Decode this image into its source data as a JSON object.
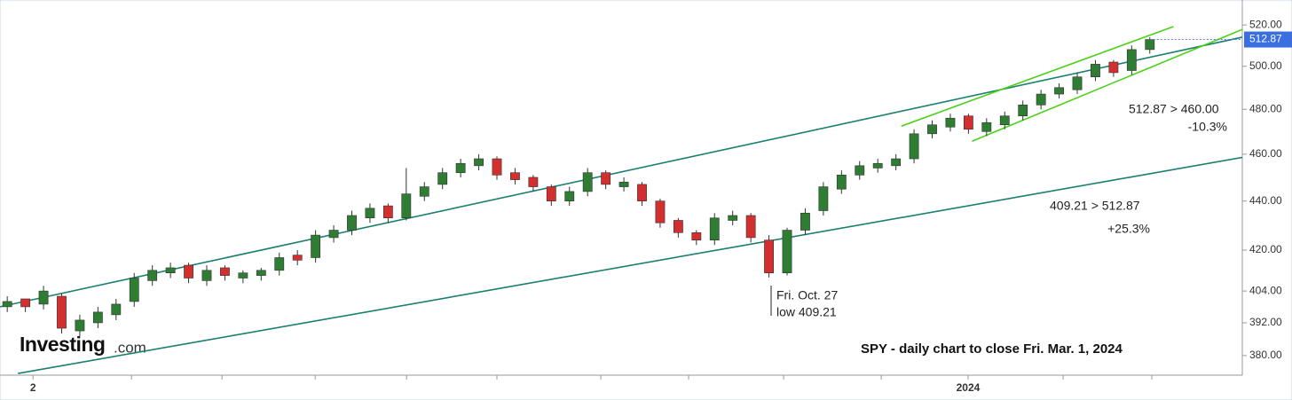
{
  "chart_data": {
    "type": "candlestick",
    "title": "SPY - daily chart to close Fri. Mar. 1, 2024",
    "logo": {
      "name": "Investing",
      "suffix": ".com"
    },
    "log_scale": true,
    "up_color": "#2e7d32",
    "down_color": "#d32f2f",
    "open": [
      398,
      401,
      399,
      402,
      389,
      392,
      395,
      400,
      408,
      411,
      414,
      408,
      413,
      409,
      410,
      412,
      418,
      417,
      425,
      428,
      433,
      438,
      433,
      442,
      447,
      452,
      455,
      458,
      452,
      450,
      446,
      440,
      444,
      452,
      446,
      447,
      440,
      432,
      427,
      424,
      432,
      434,
      424,
      411,
      428,
      436,
      445,
      451,
      454,
      455,
      458,
      469,
      472,
      477,
      470,
      473,
      477,
      482,
      487,
      489,
      495,
      502,
      498,
      508
    ],
    "high": [
      402,
      400,
      406,
      403,
      395,
      398,
      401,
      411,
      414,
      415,
      415,
      414,
      414,
      412,
      413,
      419,
      420,
      428,
      430,
      436,
      439,
      439,
      454,
      448,
      454,
      458,
      460,
      459,
      454,
      451,
      447,
      446,
      454,
      453,
      450,
      448,
      441,
      433,
      428,
      435,
      436,
      435,
      426,
      429,
      437,
      448,
      453,
      457,
      458,
      460,
      471,
      475,
      478,
      478,
      476,
      479,
      484,
      489,
      492,
      497,
      503,
      503,
      510,
      514
    ],
    "low": [
      396,
      396,
      397,
      388,
      387,
      390,
      393,
      398,
      406,
      409,
      407,
      406,
      408,
      407,
      408,
      410,
      414,
      415,
      423,
      426,
      431,
      431,
      432,
      440,
      445,
      450,
      453,
      449,
      447,
      444,
      438,
      438,
      442,
      445,
      444,
      438,
      429,
      425,
      422,
      422,
      430,
      423,
      409.21,
      410,
      426,
      434,
      443,
      449,
      452,
      453,
      456,
      467,
      470,
      469,
      468,
      471,
      475,
      480,
      485,
      487,
      493,
      495,
      496,
      506
    ],
    "close": [
      400,
      398,
      404,
      390,
      393,
      396,
      399,
      409,
      412,
      413,
      409,
      412,
      410,
      411,
      412,
      417,
      416,
      426,
      428,
      434,
      437,
      433,
      443,
      446,
      452,
      456,
      458,
      451,
      449,
      446,
      440,
      444,
      452,
      447,
      448,
      440,
      431,
      427,
      424,
      433,
      434,
      425,
      411,
      428,
      435,
      446,
      451,
      455,
      456,
      458,
      469,
      473,
      476,
      471,
      474,
      477,
      482,
      487,
      490,
      495,
      501,
      497,
      508,
      512.87
    ],
    "last_price": 512.87,
    "ylim": [
      373,
      528
    ],
    "yticks": [
      {
        "value": 380,
        "label": "380.00"
      },
      {
        "value": 392,
        "label": "392.00"
      },
      {
        "value": 404,
        "label": "404.00"
      },
      {
        "value": 420,
        "label": "420.00"
      },
      {
        "value": 440,
        "label": "440.00"
      },
      {
        "value": 460,
        "label": "460.00"
      },
      {
        "value": 480,
        "label": "480.00"
      },
      {
        "value": 500,
        "label": "500.00"
      },
      {
        "value": 520,
        "label": "520.00"
      }
    ],
    "xlim": [
      -0.4,
      68.1
    ],
    "xticks": [
      {
        "value": 1.42,
        "label": "2"
      },
      {
        "value": 52.98,
        "label": "2024"
      }
    ],
    "minor_xticks": [
      6.85,
      11.84,
      16.98,
      22.02,
      27.0,
      32.73,
      37.57,
      42.81,
      48.19,
      58.22,
      63.11
    ],
    "trendlines": [
      {
        "color": "#1a7f6e",
        "x": [
          -0.4,
          68.1
        ],
        "y": [
          398,
          514
        ]
      },
      {
        "color": "#1a7f6e",
        "x": [
          0.59,
          68.1
        ],
        "y": [
          373.6,
          458.6
        ]
      },
      {
        "color": "#4cd11a",
        "x": [
          49.3,
          64.3
        ],
        "y": [
          472.4,
          519.2
        ]
      },
      {
        "color": "#4cd11a",
        "x": [
          53.2,
          68.1
        ],
        "y": [
          465.7,
          517.8
        ]
      }
    ],
    "annotations": [
      "512.87 > 460.00",
      "-10.3%",
      "409.21 > 512.87",
      "+25.3%",
      "Fri. Oct. 27",
      "low 409.21"
    ]
  }
}
